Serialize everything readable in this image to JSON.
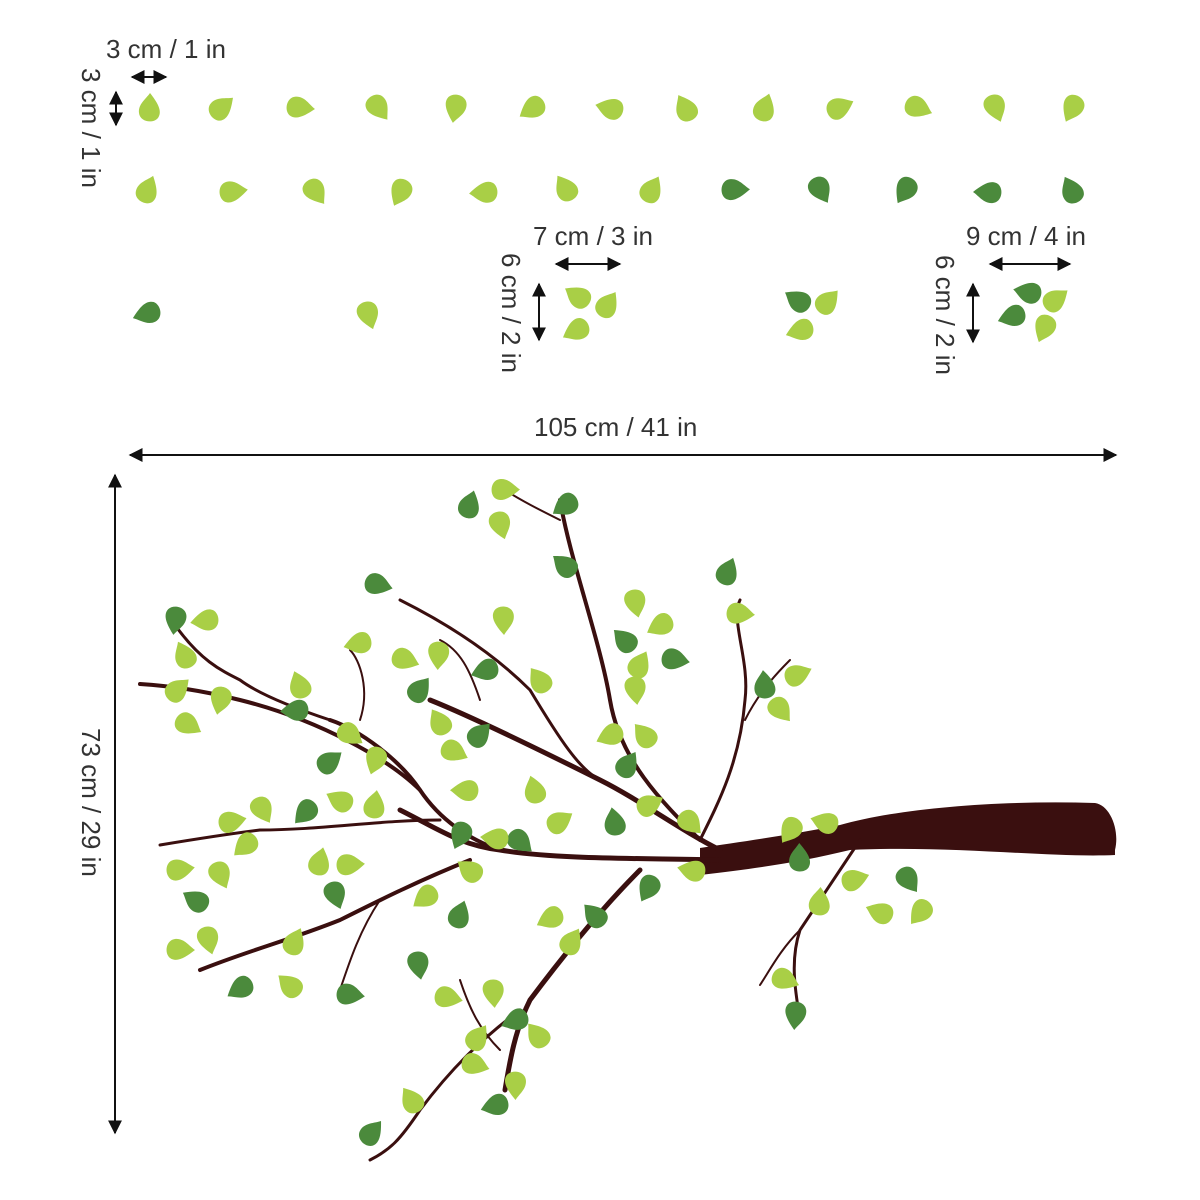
{
  "colors": {
    "light_leaf": "#a9cf46",
    "dark_leaf": "#4b8a3c",
    "branch": "#3a0f0f",
    "dimension_line": "#111111"
  },
  "dimensions": {
    "single_leaf_width": "3 cm / 1 in",
    "single_leaf_height": "3 cm / 1 in",
    "small_cluster_width": "7 cm / 3 in",
    "small_cluster_height": "6 cm / 2 in",
    "large_cluster_width": "9 cm / 4 in",
    "large_cluster_height": "6 cm / 2 in",
    "branch_width": "105 cm / 41 in",
    "branch_height": "73 cm / 29 in"
  }
}
